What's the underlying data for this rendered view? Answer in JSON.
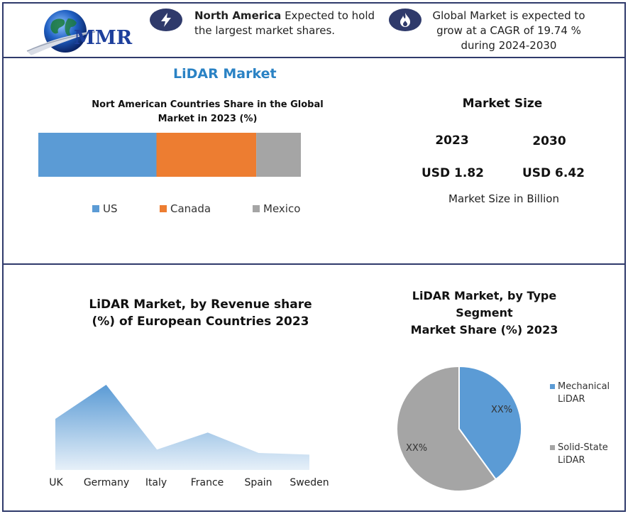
{
  "brand": {
    "logo_text": "MMR"
  },
  "highlights": [
    {
      "bold": "North America",
      "text": " Expected to hold the largest market shares.",
      "icon": "lightning-icon"
    },
    {
      "text": "Global Market is expected to grow at a CAGR of 19.74 % during 2024-2030",
      "icon": "flame-icon"
    }
  ],
  "main_title": "LiDAR Market",
  "north_america": {
    "title": "Nort American Countries Share in the Global Market in 2023  (%)",
    "chart_data": {
      "type": "bar",
      "orientation": "horizontal-stacked",
      "categories": [
        "US",
        "Canada",
        "Mexico"
      ],
      "values": [
        45,
        38,
        17
      ],
      "colors": [
        "#5b9bd5",
        "#ed7d31",
        "#a5a5a5"
      ],
      "legend": "bottom"
    }
  },
  "market_size": {
    "title": "Market Size",
    "years": [
      "2023",
      "2030"
    ],
    "values": [
      "USD 1.82",
      "USD 6.42"
    ],
    "unit_label": "Market Size in Billion"
  },
  "europe": {
    "title_line1": "LiDAR Market, by Revenue share",
    "title_line2": "(%) of European Countries 2023",
    "chart_data": {
      "type": "area",
      "categories": [
        "UK",
        "Germany",
        "Italy",
        "France",
        "Spain",
        "Sweden"
      ],
      "values": [
        30,
        50,
        12,
        22,
        10,
        9
      ],
      "ylim": [
        0,
        55
      ],
      "color": "#5b9bd5",
      "grid": false
    }
  },
  "type_segment": {
    "title_line1": "LiDAR Market, by Type Segment",
    "title_line2": "Market Share (%) 2023",
    "chart_data": {
      "type": "pie",
      "labels": [
        "Mechanical LiDAR",
        "Solid-State LiDAR"
      ],
      "legend_lines": [
        [
          "Mechanical",
          "LiDAR"
        ],
        [
          "Solid-State",
          "LiDAR"
        ]
      ],
      "values": [
        40,
        60
      ],
      "slice_labels": [
        "XX%",
        "XX%"
      ],
      "colors": [
        "#5b9bd5",
        "#a5a5a5"
      ],
      "legend": "right"
    }
  }
}
